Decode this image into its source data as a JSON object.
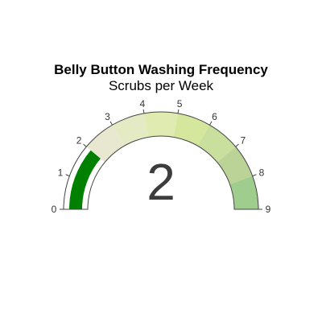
{
  "chart_data": {
    "type": "gauge",
    "title": "Belly Button Washing Frequency",
    "subtitle": "Scrubs per Week",
    "value": 2,
    "range": [
      0,
      9
    ],
    "ticks": [
      "0",
      "1",
      "2",
      "3",
      "4",
      "5",
      "6",
      "7",
      "8",
      "9"
    ],
    "bar_color": "#008000",
    "steps": [
      {
        "range": [
          0,
          1
        ],
        "color": "#ffffff"
      },
      {
        "range": [
          1,
          2
        ],
        "color": "#ffffff"
      },
      {
        "range": [
          2,
          3
        ],
        "color": "#e8e8d0"
      },
      {
        "range": [
          3,
          4
        ],
        "color": "#e4ebc4"
      },
      {
        "range": [
          4,
          5
        ],
        "color": "#dfebb0"
      },
      {
        "range": [
          5,
          6
        ],
        "color": "#d5e79d"
      },
      {
        "range": [
          6,
          7
        ],
        "color": "#c9df9e"
      },
      {
        "range": [
          7,
          8
        ],
        "color": "#bcd398"
      },
      {
        "range": [
          8,
          9
        ],
        "color": "#9fcd8d"
      }
    ]
  }
}
